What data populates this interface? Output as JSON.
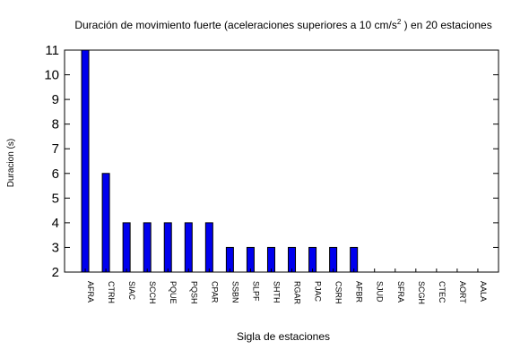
{
  "chart_data": {
    "type": "bar",
    "title_main": "Duración de movimiento fuerte (aceleraciones superiores a 10 cm/s",
    "title_sup": "2",
    "title_end": ") en 20 estaciones",
    "xlabel": "Sigla de estaciones",
    "ylabel": "Duracion (s)",
    "categories": [
      "AFRA",
      "CTRH",
      "SIAC",
      "SCCH",
      "PQUE",
      "PQSH",
      "CPAR",
      "SSBN",
      "SLPF",
      "SHTH",
      "RGAR",
      "PJAC",
      "CSRH",
      "AFBR",
      "SJUD",
      "SFRA",
      "SCGH",
      "CTEC",
      "AORT",
      "AALA"
    ],
    "values": [
      11,
      6,
      4,
      4,
      4,
      4,
      4,
      3,
      3,
      3,
      3,
      3,
      3,
      3,
      2,
      2,
      2,
      2,
      2,
      2
    ],
    "ylim": [
      2,
      11
    ],
    "yticks": [
      2,
      3,
      4,
      5,
      6,
      7,
      8,
      9,
      10,
      11
    ],
    "grid": false,
    "bar_color": "#0000ee"
  }
}
